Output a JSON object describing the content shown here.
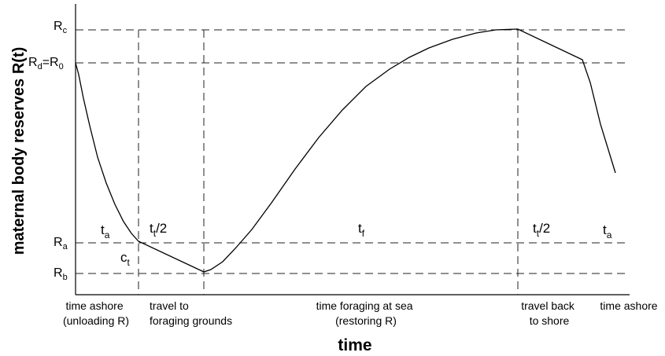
{
  "y_axis": {
    "title": "maternal body reserves R(t)"
  },
  "x_axis": {
    "title": "time"
  },
  "levels": {
    "rc": {
      "main": "R",
      "sub": "c"
    },
    "rd": {
      "main": "R",
      "sub": "d",
      "mid": "=R",
      "sub2": "0"
    },
    "ra": {
      "main": "R",
      "sub": "a"
    },
    "rb": {
      "main": "R",
      "sub": "b"
    }
  },
  "phases": {
    "ta1": {
      "main": "t",
      "sub": "a"
    },
    "tt1": {
      "main": "t",
      "sub": "t",
      "tail": "/2"
    },
    "tf": {
      "main": "t",
      "sub": "f"
    },
    "tt2": {
      "main": "t",
      "sub": "t",
      "tail": "/2"
    },
    "ta2": {
      "main": "t",
      "sub": "a"
    },
    "ct": {
      "main": "c",
      "sub": "t"
    }
  },
  "captions": {
    "c1": [
      "time ashore",
      "(unloading R)"
    ],
    "c2": [
      "travel to",
      "foraging grounds"
    ],
    "c3": [
      "time foraging at sea",
      "(restoring R)"
    ],
    "c4": [
      "travel back",
      "to shore"
    ],
    "c5": [
      "time ashore"
    ]
  }
}
